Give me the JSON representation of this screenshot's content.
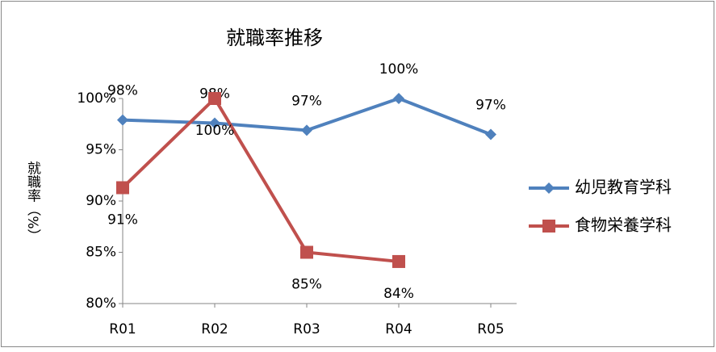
{
  "chart_data": {
    "type": "line",
    "title": "就職率推移",
    "y_label": "就職率（%）",
    "categories": [
      "R01",
      "R02",
      "R03",
      "R04",
      "R05"
    ],
    "series": [
      {
        "name": "幼児教育学科",
        "color": "#4f81bd",
        "marker": "diamond",
        "label_position": "above",
        "values": [
          97.9,
          97.6,
          96.9,
          100,
          96.5
        ],
        "value_labels": [
          "98%",
          "98%",
          "97%",
          "100%",
          "97%"
        ]
      },
      {
        "name": "食物栄養学科",
        "color": "#c0504d",
        "marker": "square",
        "label_position": "below",
        "values": [
          91.3,
          100,
          85,
          84.1,
          null
        ],
        "value_labels": [
          "91%",
          "100%",
          "85%",
          "84%",
          null
        ]
      }
    ],
    "ylim": [
      80,
      100
    ],
    "yticks": [
      {
        "value": 80,
        "label": "80%"
      },
      {
        "value": 85,
        "label": "85%"
      },
      {
        "value": 90,
        "label": "90%"
      },
      {
        "value": 95,
        "label": "95%"
      },
      {
        "value": 100,
        "label": "100%"
      }
    ],
    "grid": false,
    "legend": "right"
  }
}
